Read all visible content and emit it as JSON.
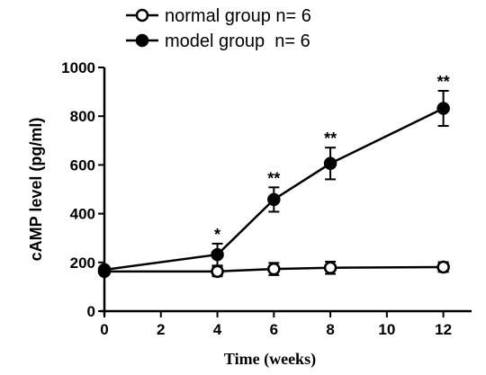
{
  "chart_data": {
    "type": "line",
    "title": "",
    "xlabel": "Time (weeks)",
    "ylabel": "cAMP level (pg/ml)",
    "xlim": [
      0,
      13
    ],
    "ylim": [
      0,
      1000
    ],
    "x_ticks": [
      0,
      2,
      4,
      6,
      8,
      10,
      12
    ],
    "y_ticks": [
      0,
      200,
      400,
      600,
      800,
      1000
    ],
    "grid": false,
    "legend_position": "top-left",
    "series": [
      {
        "name": "normal group n= 6",
        "marker": "open-circle",
        "color": "#000000",
        "x": [
          0,
          4,
          6,
          8,
          12
        ],
        "y": [
          163,
          163,
          173,
          178,
          181
        ],
        "error": [
          10,
          20,
          25,
          25,
          20
        ]
      },
      {
        "name": "model group  n= 6",
        "marker": "filled-circle",
        "color": "#000000",
        "x": [
          0,
          4,
          6,
          8,
          12
        ],
        "y": [
          170,
          232,
          458,
          606,
          832
        ],
        "error": [
          10,
          45,
          50,
          65,
          72
        ]
      }
    ],
    "annotations": [
      {
        "x": 4,
        "y": 277,
        "text": "*"
      },
      {
        "x": 6,
        "y": 508,
        "text": "**"
      },
      {
        "x": 8,
        "y": 671,
        "text": "**"
      },
      {
        "x": 12,
        "y": 904,
        "text": "**"
      }
    ]
  }
}
